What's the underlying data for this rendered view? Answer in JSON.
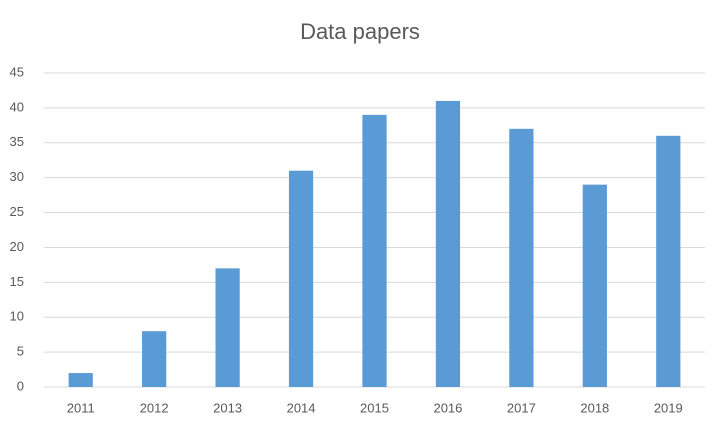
{
  "chart_data": {
    "type": "bar",
    "title": "Data papers",
    "categories": [
      "2011",
      "2012",
      "2013",
      "2014",
      "2015",
      "2016",
      "2017",
      "2018",
      "2019"
    ],
    "values": [
      2,
      8,
      17,
      31,
      39,
      41,
      37,
      29,
      36
    ],
    "color": "#5b9bd5",
    "ylim": [
      0,
      45
    ],
    "yticks": [
      0,
      5,
      10,
      15,
      20,
      25,
      30,
      35,
      40,
      45
    ],
    "grid": true
  }
}
